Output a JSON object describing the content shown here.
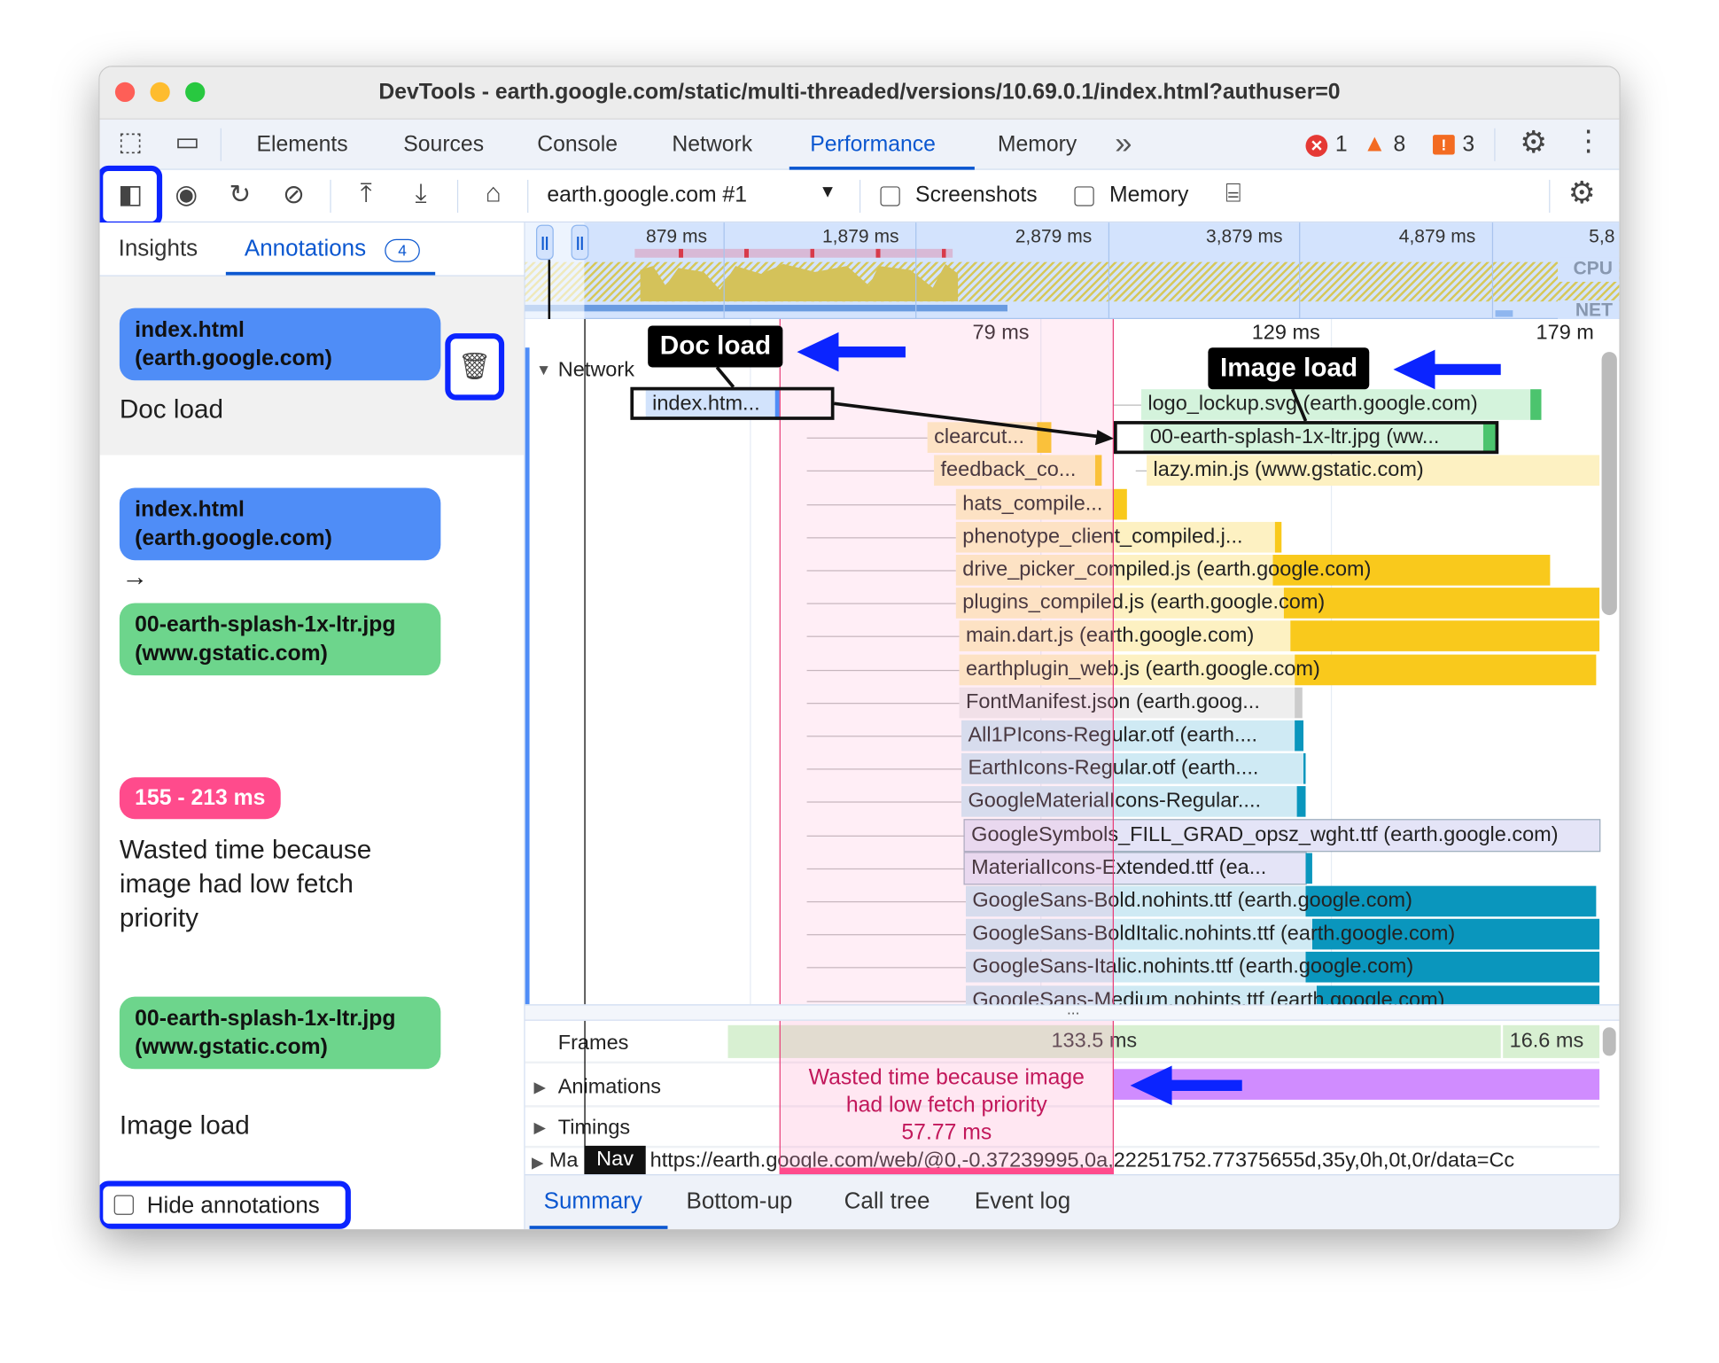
{
  "window": {
    "title": "DevTools - earth.google.com/static/multi-threaded/versions/10.69.0.1/index.html?authuser=0"
  },
  "tabs": [
    {
      "label": "Elements"
    },
    {
      "label": "Sources"
    },
    {
      "label": "Console"
    },
    {
      "label": "Network"
    },
    {
      "label": "Performance",
      "active": true
    },
    {
      "label": "Memory"
    }
  ],
  "more_tabs": "»",
  "status": {
    "errors": "1",
    "warnings": "8",
    "issues": "3",
    "error_color": "#e53935",
    "warning_color": "#f36b21"
  },
  "toolbar": {
    "recording": "earth.google.com #1",
    "screenshots_label": "Screenshots",
    "memory_label": "Memory",
    "screenshots_checked": false,
    "memory_checked": false
  },
  "sidebar": {
    "tabs": [
      {
        "label": "Insights"
      },
      {
        "label": "Annotations",
        "active": true,
        "count": "4"
      }
    ],
    "annotations": [
      {
        "chip": "index.html (earth.google.com)",
        "label": "Doc load"
      },
      {
        "from": "index.html (earth.google.com)",
        "arrow": "→",
        "to": "00-earth-splash-1x-ltr.jpg (www.gstatic.com)"
      },
      {
        "chip": "155 - 213 ms",
        "label": "Wasted time because image had low fetch priority"
      },
      {
        "chip": "00-earth-splash-1x-ltr.jpg (www.gstatic.com)",
        "label": "Image load"
      }
    ],
    "hide_annotations": "Hide annotations",
    "hide_checked": false
  },
  "overview": {
    "ticks": [
      "879 ms",
      "1,879 ms",
      "2,879 ms",
      "3,879 ms",
      "4,879 ms",
      "5,8"
    ],
    "cpu": "CPU",
    "net": "NET"
  },
  "timeline": {
    "ticks": [
      "79 ms",
      "129 ms",
      "179 m"
    ],
    "network_label": "Network",
    "rows": [
      {
        "label": "logo_lockup.svg (earth.google.com)",
        "type": "image"
      },
      {
        "label": "index.htm...",
        "type": "doc"
      },
      {
        "label": "00-earth-splash-1x-ltr.jpg (ww...",
        "type": "image"
      },
      {
        "label": "clearcut...",
        "type": "script"
      },
      {
        "label": "feedback_co...",
        "type": "script"
      },
      {
        "label": "lazy.min.js (www.gstatic.com)",
        "type": "script"
      },
      {
        "label": "hats_compile...",
        "type": "script"
      },
      {
        "label": "phenotype_client_compiled.j...",
        "type": "script"
      },
      {
        "label": "drive_picker_compiled.js (earth.google.com)",
        "type": "script"
      },
      {
        "label": "plugins_compiled.js (earth.google.com)",
        "type": "script"
      },
      {
        "label": "main.dart.js (earth.google.com)",
        "type": "script"
      },
      {
        "label": "earthplugin_web.js (earth.google.com)",
        "type": "script"
      },
      {
        "label": "FontManifest.json (earth.goog...",
        "type": "other"
      },
      {
        "label": "All1PIcons-Regular.otf (earth....",
        "type": "font"
      },
      {
        "label": "EarthIcons-Regular.otf (earth....",
        "type": "font"
      },
      {
        "label": "GoogleMaterialIcons-Regular....",
        "type": "font"
      },
      {
        "label": "GoogleSymbols_FILL_GRAD_opsz_wght.ttf (earth.google.com)",
        "type": "font2"
      },
      {
        "label": "MaterialIcons-Extended.ttf (ea...",
        "type": "font2"
      },
      {
        "label": "GoogleSans-Bold.nohints.ttf (earth.google.com)",
        "type": "font"
      },
      {
        "label": "GoogleSans-BoldItalic.nohints.ttf (earth.google.com)",
        "type": "font"
      },
      {
        "label": "GoogleSans-Italic.nohints.ttf (earth.google.com)",
        "type": "font"
      },
      {
        "label": "GoogleSans-Medium.nohints.ttf (earth.google.com)",
        "type": "font"
      }
    ],
    "doc_label": "Doc load",
    "image_label": "Image load",
    "wasted_line1": "Wasted time because image",
    "wasted_line2": "had low fetch priority",
    "wasted_duration": "57.77 ms",
    "frames_label": "Frames",
    "frame1": "133.5 ms",
    "frame2": "16.6 ms",
    "animations_label": "Animations",
    "timings_label": "Timings",
    "main_label": "Ma",
    "main_url": "https://earth.google.com/web/@0,-0.37239995,0a,22251752.77375655d,35y,0h,0t,0r/data=Cc",
    "nav": "Nav",
    "more": "..."
  },
  "colors": {
    "script_light": "#fdf1c2",
    "script_dark": "#f9c91c",
    "image_light": "#d4f3dc",
    "image_dark": "#4cc46e",
    "doc_light": "#d2e3fc",
    "doc_dark": "#4f8df7",
    "font_light": "#cfeaf4",
    "font_dark": "#0a96bd",
    "wasted": "#ff4b8c",
    "annotation_outline": "#0b24ff"
  },
  "bottom_tabs": [
    {
      "label": "Summary",
      "active": true
    },
    {
      "label": "Bottom-up"
    },
    {
      "label": "Call tree"
    },
    {
      "label": "Event log"
    }
  ]
}
